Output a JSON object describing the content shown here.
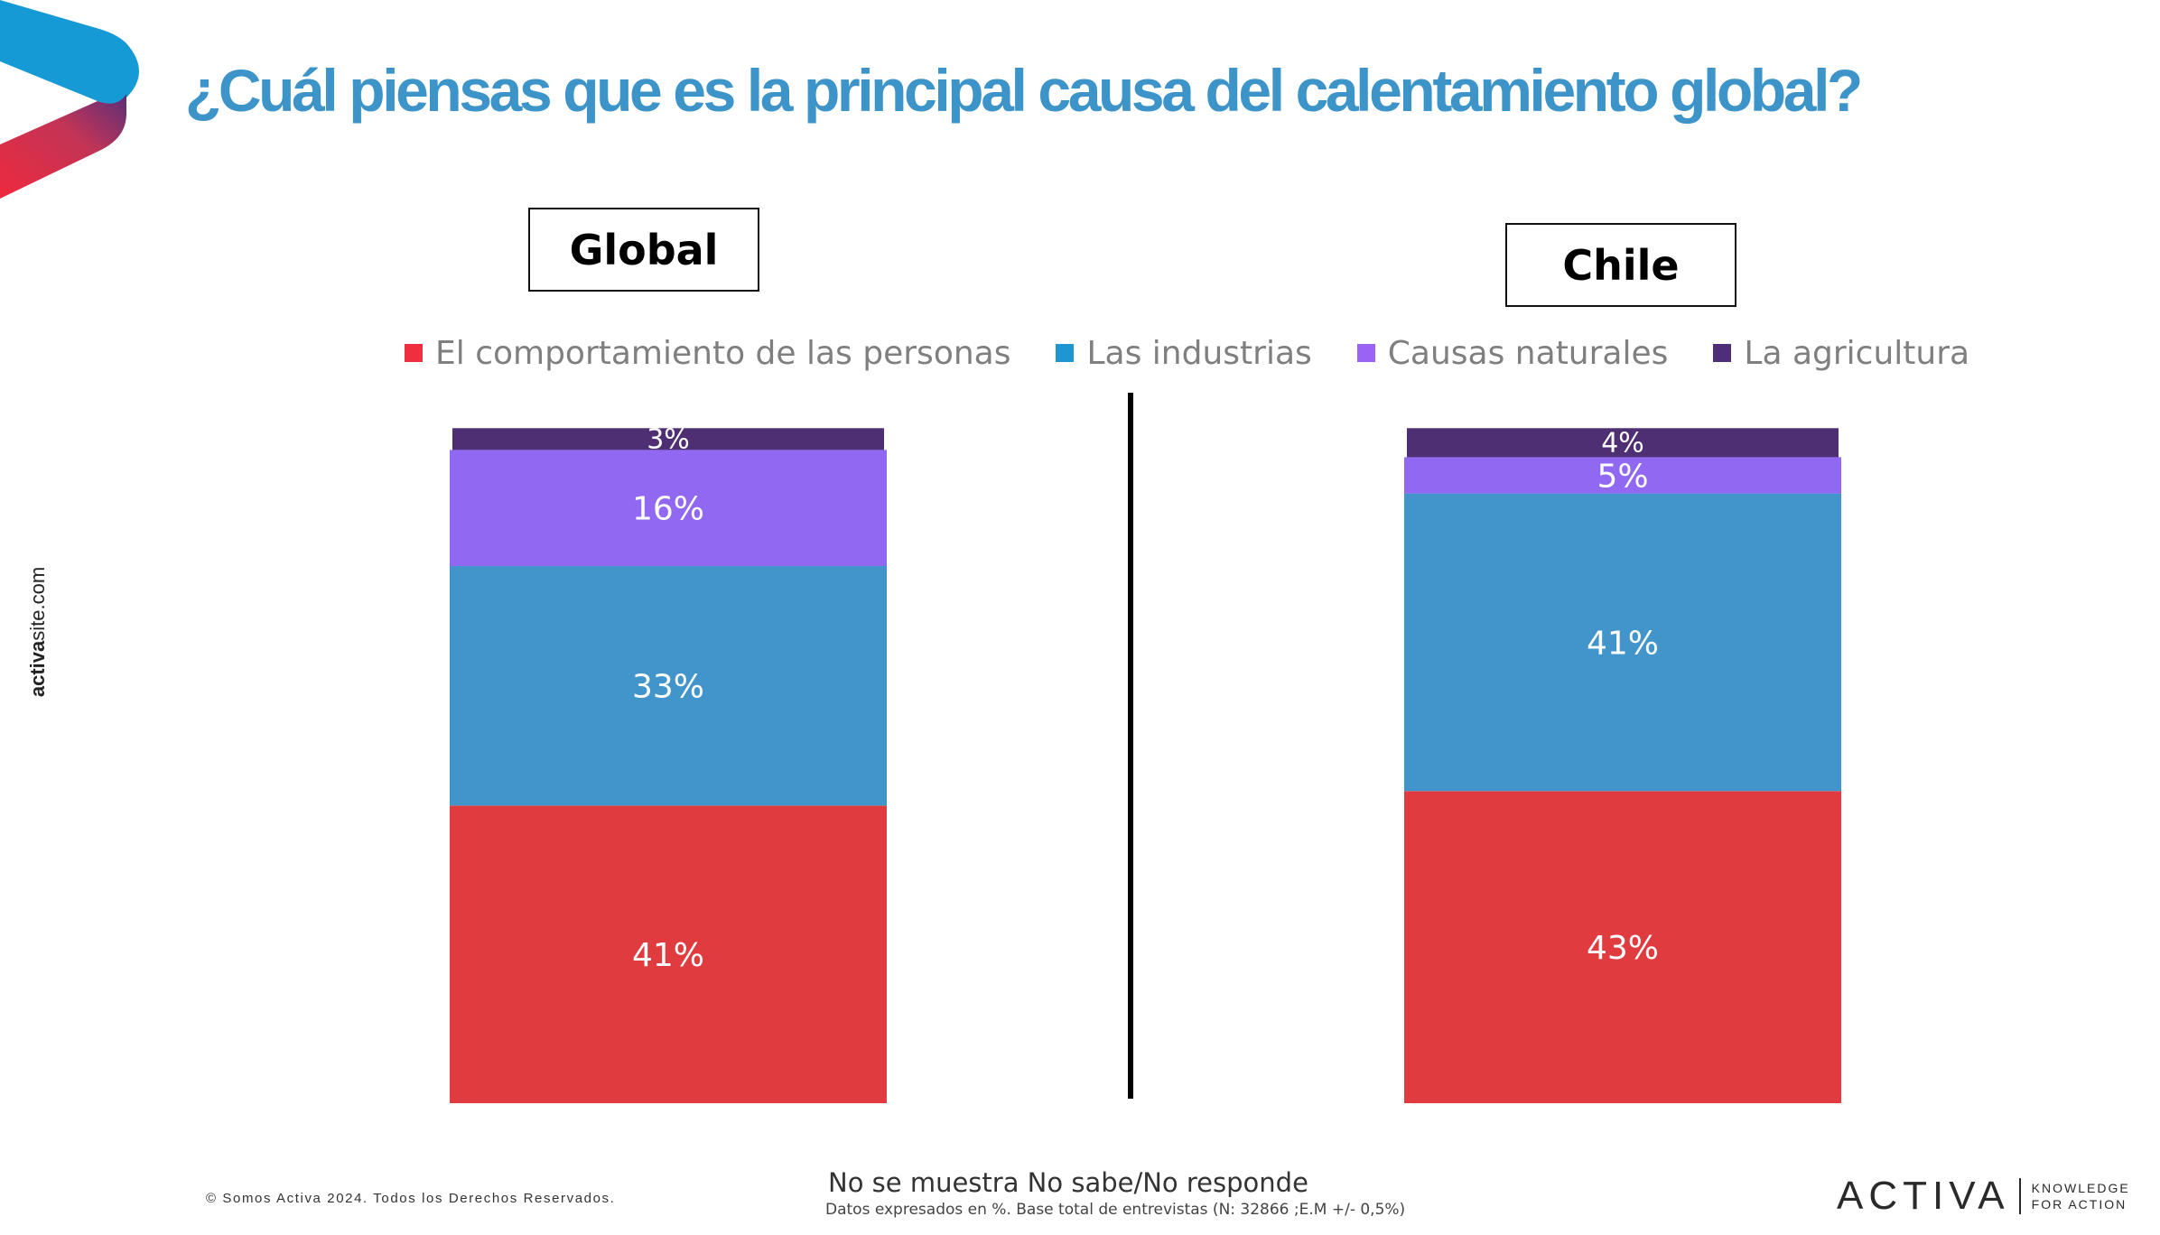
{
  "title": "¿Cuál piensas que es la principal causa del calentamiento global?",
  "side_brand": {
    "bold": "activa",
    "regular": "site.com"
  },
  "colors": {
    "title": "#3d94c9",
    "personas": "#e03c3f",
    "industrias": "#4295ca",
    "naturales": "#9168f2",
    "agricultura": "#4e2f74",
    "legend_personas": "#ef2f3f",
    "legend_industrias": "#1d96d2",
    "legend_naturales": "#9a62f5",
    "legend_agricultura": "#4f2e78"
  },
  "chart_data": {
    "type": "bar",
    "stacked": true,
    "categories": [
      "Global",
      "Chile"
    ],
    "series": [
      {
        "name": "El comportamiento de las personas",
        "values": [
          41,
          43
        ]
      },
      {
        "name": "Las industrias",
        "values": [
          33,
          41
        ]
      },
      {
        "name": "Causas naturales",
        "values": [
          16,
          5
        ]
      },
      {
        "name": "La agricultura",
        "values": [
          3,
          4
        ]
      }
    ],
    "unit": "%",
    "legend_position": "top",
    "grid": false
  },
  "footer": {
    "copyright": "© Somos Activa 2024. Todos los Derechos Reservados.",
    "note_main": "No se muestra  No sabe/No  responde",
    "note_sub": "Datos expresados en %. Base total de entrevistas (N: 32866  ;E.M +/- 0,5%)"
  },
  "brand": {
    "name": "ACTIVA",
    "tagline_1": "KNOWLEDGE",
    "tagline_2": "FOR ACTION"
  }
}
